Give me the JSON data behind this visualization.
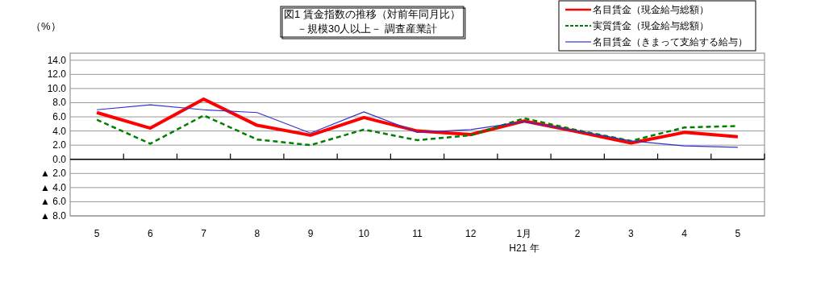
{
  "chart_data": {
    "type": "line",
    "title": "図1 賃金指数の推移（対前年同月比）",
    "subtitle": "－規模30人以上－ 調査産業計",
    "ylabel": "（%）",
    "categories": [
      "5",
      "6",
      "7",
      "8",
      "9",
      "10",
      "11",
      "12",
      "1月",
      "2",
      "3",
      "4",
      "5"
    ],
    "annotations": [
      "H21 年"
    ],
    "ylim": [
      -8,
      15
    ],
    "yticks": [
      {
        "value": -8,
        "label": "▲ 8.0"
      },
      {
        "value": -6,
        "label": "▲ 6.0"
      },
      {
        "value": -4,
        "label": "▲ 4.0"
      },
      {
        "value": -2,
        "label": "▲ 2.0"
      },
      {
        "value": 0,
        "label": "0.0"
      },
      {
        "value": 2,
        "label": "2.0"
      },
      {
        "value": 4,
        "label": "4.0"
      },
      {
        "value": 6,
        "label": "6.0"
      },
      {
        "value": 8,
        "label": "8.0"
      },
      {
        "value": 10,
        "label": "10.0"
      },
      {
        "value": 12,
        "label": "12.0"
      },
      {
        "value": 14,
        "label": "14.0"
      }
    ],
    "grid": "y",
    "legend": "top right",
    "series": [
      {
        "name": "名目賃金（現金給与総額）",
        "color": "#ff0000",
        "line_style": "solid",
        "values": [
          6.6,
          4.4,
          8.5,
          4.8,
          3.4,
          5.9,
          4.0,
          3.5,
          5.4,
          3.9,
          2.3,
          3.8,
          3.2
        ]
      },
      {
        "name": "実質賃金（現金給与総額）",
        "color": "#008000",
        "line_style": "dashed",
        "values": [
          5.6,
          2.2,
          6.2,
          2.8,
          2.0,
          4.2,
          2.7,
          3.4,
          5.8,
          4.1,
          2.6,
          4.5,
          4.7
        ]
      },
      {
        "name": "名目賃金（きまって支給する給与）",
        "color": "#3333cc",
        "line_style": "solid",
        "values": [
          7.0,
          7.7,
          7.0,
          6.6,
          3.7,
          6.7,
          3.8,
          4.2,
          5.3,
          4.0,
          2.6,
          1.9,
          1.7
        ]
      }
    ]
  }
}
